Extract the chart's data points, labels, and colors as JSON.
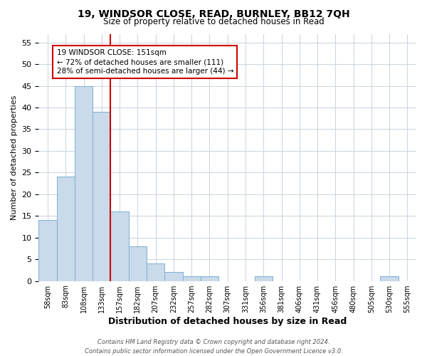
{
  "title": "19, WINDSOR CLOSE, READ, BURNLEY, BB12 7QH",
  "subtitle": "Size of property relative to detached houses in Read",
  "xlabel": "Distribution of detached houses by size in Read",
  "ylabel": "Number of detached properties",
  "bar_color": "#c9daea",
  "bar_edge_color": "#7bafd4",
  "grid_color": "#c8d4e0",
  "vline_color": "#cc0000",
  "annotation_text": "19 WINDSOR CLOSE: 151sqm\n← 72% of detached houses are smaller (111)\n28% of semi-detached houses are larger (44) →",
  "annotation_box_color": "#cc0000",
  "categories": [
    "58sqm",
    "83sqm",
    "108sqm",
    "133sqm",
    "157sqm",
    "182sqm",
    "207sqm",
    "232sqm",
    "257sqm",
    "282sqm",
    "307sqm",
    "331sqm",
    "356sqm",
    "381sqm",
    "406sqm",
    "431sqm",
    "456sqm",
    "480sqm",
    "505sqm",
    "530sqm",
    "555sqm"
  ],
  "values": [
    14,
    24,
    45,
    39,
    16,
    8,
    4,
    2,
    1,
    1,
    0,
    0,
    1,
    0,
    0,
    0,
    0,
    0,
    0,
    1,
    0
  ],
  "ylim": [
    0,
    57
  ],
  "yticks": [
    0,
    5,
    10,
    15,
    20,
    25,
    30,
    35,
    40,
    45,
    50,
    55
  ],
  "vline_pos": 3.5,
  "footnote": "Contains HM Land Registry data © Crown copyright and database right 2024.\nContains public sector information licensed under the Open Government Licence v3.0.",
  "bg_color": "#ffffff",
  "plot_bg_color": "#ffffff"
}
